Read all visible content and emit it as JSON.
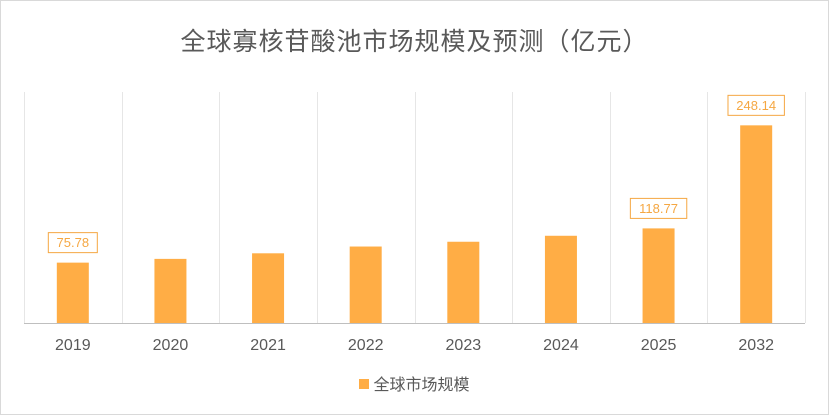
{
  "chart_data": {
    "type": "bar",
    "title": "全球寡核苷酸池市场规模及预测（亿元）",
    "categories": [
      "2019",
      "2020",
      "2021",
      "2022",
      "2023",
      "2024",
      "2025",
      "2032"
    ],
    "series": [
      {
        "name": "全球市场规模",
        "values": [
          75.78,
          80.5,
          87.5,
          96.0,
          102.0,
          109.5,
          118.77,
          248.14
        ],
        "labeled": [
          true,
          false,
          false,
          false,
          false,
          false,
          true,
          true
        ]
      }
    ],
    "ylim": [
      0,
      290
    ],
    "grid": "vertical",
    "legend_position": "bottom",
    "colors": {
      "bar": "#ffad45",
      "label_border": "#f5a742",
      "grid": "#e6e6e6",
      "axis": "#bfbfbf"
    }
  }
}
